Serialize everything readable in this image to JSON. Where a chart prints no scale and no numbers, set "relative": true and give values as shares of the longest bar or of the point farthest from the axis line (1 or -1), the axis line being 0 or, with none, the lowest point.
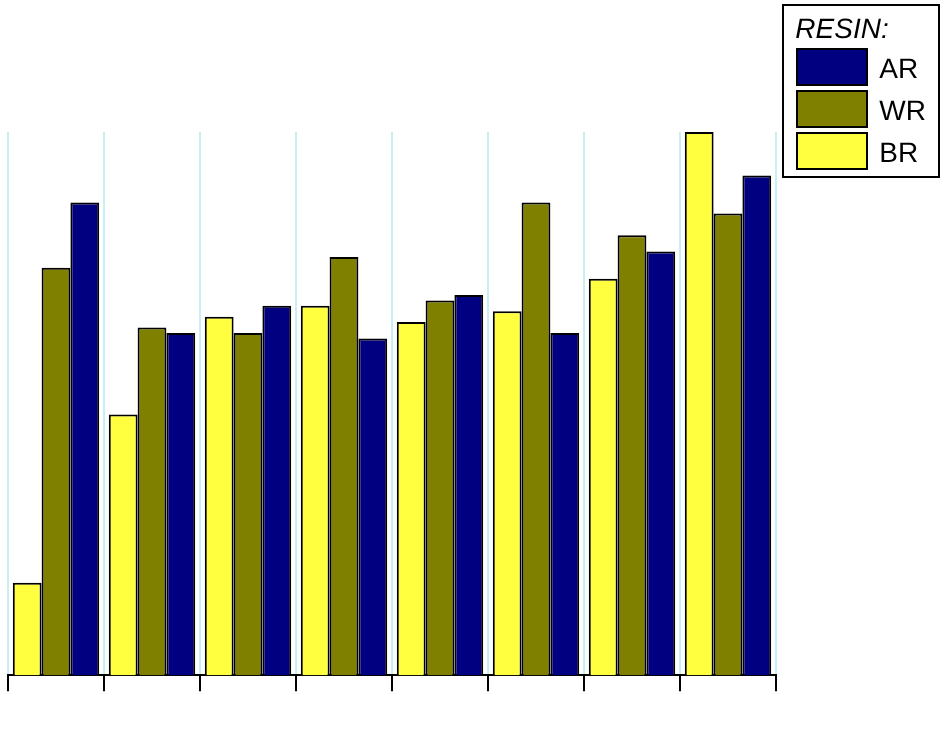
{
  "chart_data": {
    "type": "bar",
    "relative": true,
    "categories": [
      null,
      null,
      null,
      null,
      null,
      null,
      null,
      null
    ],
    "series": [
      {
        "name": "BR",
        "color": "#ffff40",
        "values": [
          0.17,
          0.48,
          0.66,
          0.68,
          0.65,
          0.67,
          0.73,
          1
        ]
      },
      {
        "name": "WR",
        "color": "#808000",
        "values": [
          0.75,
          0.64,
          0.63,
          0.77,
          0.69,
          0.87,
          0.81,
          0.85
        ]
      },
      {
        "name": "AR",
        "color": "#000080",
        "values": [
          0.87,
          0.63,
          0.68,
          0.62,
          0.7,
          0.63,
          0.78,
          0.92
        ]
      }
    ],
    "legend_title": "RESIN:",
    "legend": "top right",
    "grid": "x"
  }
}
